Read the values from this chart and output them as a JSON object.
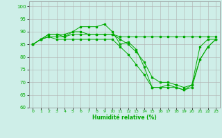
{
  "xlabel": "Humidité relative (%)",
  "ylabel": "",
  "background_color": "#ceeee8",
  "grid_color": "#b0b0b0",
  "line_color": "#00aa00",
  "xlim": [
    -0.5,
    23.5
  ],
  "ylim": [
    60,
    102
  ],
  "yticks": [
    60,
    65,
    70,
    75,
    80,
    85,
    90,
    95,
    100
  ],
  "xtick_labels": [
    "0",
    "1",
    "2",
    "3",
    "4",
    "5",
    "6",
    "7",
    "8",
    "9",
    "10",
    "11",
    "12",
    "13",
    "14",
    "15",
    "16",
    "17",
    "18",
    "19",
    "20",
    "21",
    "22",
    "23"
  ],
  "series": [
    [
      85,
      87,
      89,
      89,
      88,
      90,
      92,
      92,
      92,
      93,
      90,
      85,
      86,
      83,
      76,
      68,
      68,
      69,
      68,
      67,
      69,
      84,
      87,
      87
    ],
    [
      85,
      87,
      89,
      89,
      89,
      90,
      90,
      89,
      89,
      89,
      89,
      88,
      88,
      88,
      88,
      88,
      88,
      88,
      88,
      88,
      88,
      88,
      88,
      88
    ],
    [
      85,
      87,
      88,
      88,
      88,
      89,
      89,
      89,
      89,
      89,
      89,
      87,
      85,
      82,
      78,
      72,
      70,
      70,
      69,
      68,
      69,
      79,
      84,
      87
    ],
    [
      85,
      87,
      88,
      87,
      87,
      87,
      87,
      87,
      87,
      87,
      87,
      84,
      81,
      77,
      73,
      68,
      68,
      68,
      68,
      67,
      68,
      79,
      84,
      87
    ]
  ]
}
